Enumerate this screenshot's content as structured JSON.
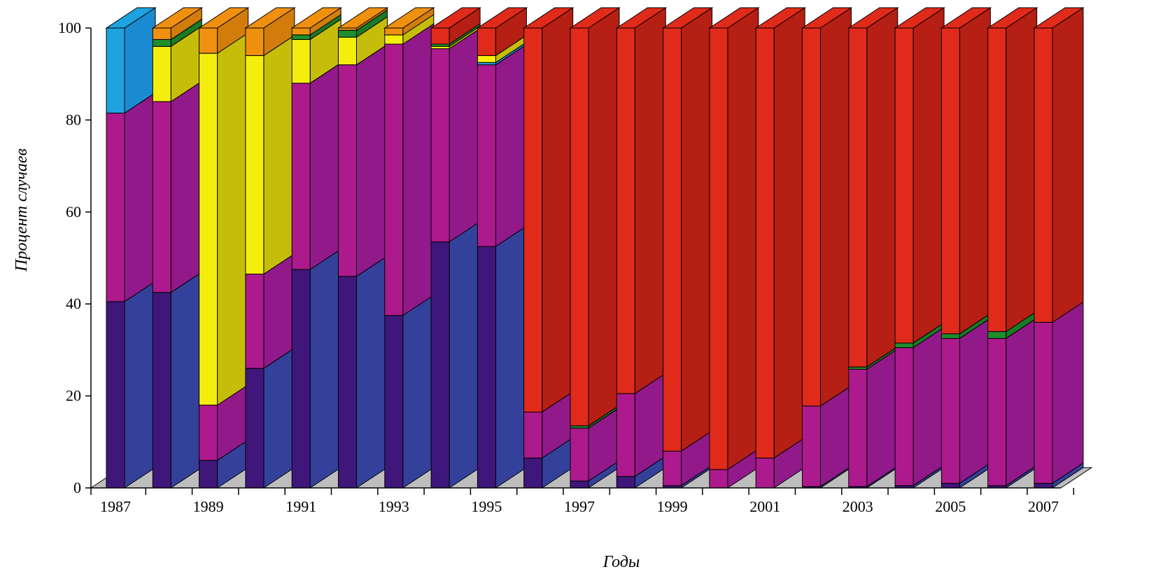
{
  "chart_data": {
    "type": "bar",
    "stacked": true,
    "three_d": true,
    "title": "",
    "xlabel": "Годы",
    "ylabel": "Процент случаев",
    "ylim": [
      0,
      100
    ],
    "yticks": [
      0,
      20,
      40,
      60,
      80,
      100
    ],
    "xtick_labels": [
      "1987",
      "1989",
      "1991",
      "1993",
      "1995",
      "1997",
      "1999",
      "2001",
      "2003",
      "2005",
      "2007"
    ],
    "categories": [
      "1987",
      "1988",
      "1989",
      "1990",
      "1991",
      "1992",
      "1993",
      "1994",
      "1995",
      "1996",
      "1997",
      "1998",
      "1999",
      "2000",
      "2001",
      "2002",
      "2003",
      "2004",
      "2005",
      "2006",
      "2007"
    ],
    "series": [
      {
        "color_front": "#3f167a",
        "color_side": "#33419a",
        "values": [
          40.5,
          42.5,
          6.0,
          26.0,
          47.5,
          46.0,
          37.5,
          53.5,
          52.5,
          6.5,
          1.5,
          2.5,
          0.5,
          0.0,
          0.0,
          0.3,
          0.3,
          0.5,
          1.0,
          0.5,
          1.0
        ]
      },
      {
        "color_front": "#ad1a8d",
        "color_side": "#92198a",
        "values": [
          41.0,
          41.5,
          12.0,
          20.5,
          40.5,
          46.0,
          59.0,
          42.0,
          39.5,
          10.0,
          11.5,
          18.0,
          7.5,
          4.0,
          6.5,
          17.5,
          25.5,
          30.0,
          31.5,
          32.0,
          35.0
        ]
      },
      {
        "color_front": "#1fa2e0",
        "color_side": "#1a8bd1",
        "values": [
          18.5,
          0,
          0,
          0,
          0,
          0,
          0,
          0,
          0.5,
          0,
          0,
          0,
          0,
          0,
          0,
          0,
          0,
          0,
          0,
          0,
          0
        ]
      },
      {
        "color_front": "#f5ee0d",
        "color_side": "#c6bd0a",
        "values": [
          0,
          12.0,
          76.5,
          47.5,
          9.5,
          6.0,
          2.0,
          0.5,
          1.5,
          0,
          0,
          0,
          0,
          0,
          0,
          0,
          0,
          0,
          0,
          0,
          0
        ]
      },
      {
        "color_front": "#1e8f2c",
        "color_side": "#1a7a26",
        "values": [
          0,
          1.5,
          0,
          0,
          1.0,
          1.5,
          0,
          0.5,
          0,
          0,
          0.5,
          0,
          0,
          0,
          0,
          0,
          0.5,
          1.0,
          1.0,
          1.5,
          0
        ]
      },
      {
        "color_front": "#f0900f",
        "color_side": "#d27d0b",
        "values": [
          0,
          2.5,
          5.5,
          6.0,
          1.5,
          0.5,
          1.5,
          0,
          0,
          0,
          0,
          0,
          0,
          0,
          0,
          0,
          0,
          0,
          0,
          0,
          0
        ]
      },
      {
        "color_front": "#e02a1a",
        "color_side": "#b51f14",
        "values": [
          0,
          0,
          0,
          0,
          0,
          0,
          0,
          3.5,
          6.0,
          83.5,
          86.5,
          79.5,
          92.0,
          96.0,
          93.5,
          82.2,
          73.7,
          68.5,
          66.5,
          66.0,
          64.0
        ]
      }
    ],
    "floor_color": "#bdbdbd",
    "grid": false,
    "legend": "none"
  }
}
